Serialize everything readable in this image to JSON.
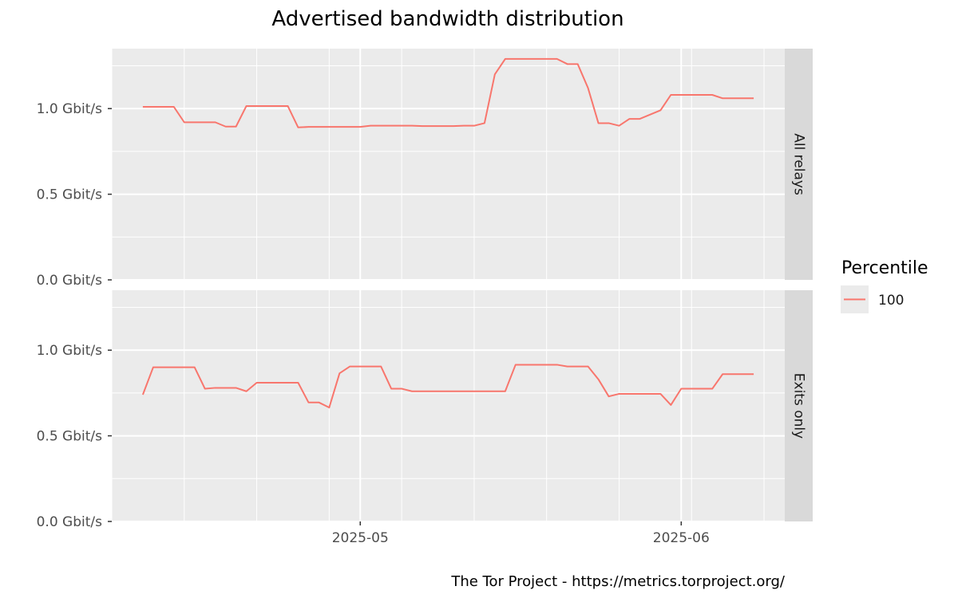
{
  "chart_data": {
    "type": "line",
    "title": "Advertised bandwidth distribution",
    "caption": "The Tor Project - https://metrics.torproject.org/",
    "ylim": [
      0,
      1.35
    ],
    "y_ticks": [
      {
        "value": 0.0,
        "label": "0.0 Gbit/s"
      },
      {
        "value": 0.5,
        "label": "0.5 Gbit/s"
      },
      {
        "value": 1.0,
        "label": "1.0 Gbit/s"
      }
    ],
    "xlim": [
      "2025-04-07",
      "2025-06-11"
    ],
    "x_ticks": [
      {
        "value": "2025-05-01",
        "label": "2025-05"
      },
      {
        "value": "2025-06-01",
        "label": "2025-06"
      }
    ],
    "legend": {
      "title": "Percentile",
      "entries": [
        "100"
      ],
      "position": "right"
    },
    "colors": {
      "line": "#f8766d",
      "panel": "#ebebeb",
      "strip": "#d9d9d9",
      "grid": "#ffffff"
    },
    "grid": true,
    "panels": [
      {
        "label": "All relays",
        "series": [
          {
            "name": "100",
            "x": [
              "2025-04-10",
              "2025-04-11",
              "2025-04-12",
              "2025-04-13",
              "2025-04-14",
              "2025-04-15",
              "2025-04-16",
              "2025-04-17",
              "2025-04-18",
              "2025-04-19",
              "2025-04-20",
              "2025-04-21",
              "2025-04-22",
              "2025-04-23",
              "2025-04-24",
              "2025-04-25",
              "2025-04-26",
              "2025-04-27",
              "2025-04-28",
              "2025-04-29",
              "2025-04-30",
              "2025-05-01",
              "2025-05-02",
              "2025-05-03",
              "2025-05-04",
              "2025-05-05",
              "2025-05-06",
              "2025-05-07",
              "2025-05-08",
              "2025-05-09",
              "2025-05-10",
              "2025-05-11",
              "2025-05-12",
              "2025-05-13",
              "2025-05-14",
              "2025-05-15",
              "2025-05-16",
              "2025-05-17",
              "2025-05-18",
              "2025-05-19",
              "2025-05-20",
              "2025-05-21",
              "2025-05-22",
              "2025-05-23",
              "2025-05-24",
              "2025-05-25",
              "2025-05-26",
              "2025-05-27",
              "2025-05-28",
              "2025-05-29",
              "2025-05-30",
              "2025-05-31",
              "2025-06-01",
              "2025-06-02",
              "2025-06-03",
              "2025-06-04",
              "2025-06-05",
              "2025-06-06",
              "2025-06-07",
              "2025-06-08"
            ],
            "values": [
              1.01,
              1.01,
              1.01,
              1.01,
              0.92,
              0.92,
              0.92,
              0.92,
              0.895,
              0.895,
              1.015,
              1.015,
              1.015,
              1.015,
              1.015,
              0.89,
              0.893,
              0.893,
              0.893,
              0.893,
              0.893,
              0.893,
              0.9,
              0.9,
              0.9,
              0.9,
              0.9,
              0.898,
              0.898,
              0.898,
              0.898,
              0.9,
              0.9,
              0.915,
              1.2,
              1.29,
              1.29,
              1.29,
              1.29,
              1.29,
              1.29,
              1.26,
              1.26,
              1.12,
              0.915,
              0.915,
              0.9,
              0.94,
              0.94,
              0.965,
              0.99,
              1.08,
              1.08,
              1.08,
              1.08,
              1.08,
              1.06,
              1.06,
              1.06,
              1.06
            ]
          }
        ]
      },
      {
        "label": "Exits only",
        "series": [
          {
            "name": "100",
            "x": [
              "2025-04-10",
              "2025-04-11",
              "2025-04-12",
              "2025-04-13",
              "2025-04-14",
              "2025-04-15",
              "2025-04-16",
              "2025-04-17",
              "2025-04-18",
              "2025-04-19",
              "2025-04-20",
              "2025-04-21",
              "2025-04-22",
              "2025-04-23",
              "2025-04-24",
              "2025-04-25",
              "2025-04-26",
              "2025-04-27",
              "2025-04-28",
              "2025-04-29",
              "2025-04-30",
              "2025-05-01",
              "2025-05-02",
              "2025-05-03",
              "2025-05-04",
              "2025-05-05",
              "2025-05-06",
              "2025-05-07",
              "2025-05-08",
              "2025-05-09",
              "2025-05-10",
              "2025-05-11",
              "2025-05-12",
              "2025-05-13",
              "2025-05-14",
              "2025-05-15",
              "2025-05-16",
              "2025-05-17",
              "2025-05-18",
              "2025-05-19",
              "2025-05-20",
              "2025-05-21",
              "2025-05-22",
              "2025-05-23",
              "2025-05-24",
              "2025-05-25",
              "2025-05-26",
              "2025-05-27",
              "2025-05-28",
              "2025-05-29",
              "2025-05-30",
              "2025-05-31",
              "2025-06-01",
              "2025-06-02",
              "2025-06-03",
              "2025-06-04",
              "2025-06-05",
              "2025-06-06",
              "2025-06-07",
              "2025-06-08"
            ],
            "values": [
              0.74,
              0.9,
              0.9,
              0.9,
              0.9,
              0.9,
              0.775,
              0.78,
              0.78,
              0.78,
              0.76,
              0.81,
              0.81,
              0.81,
              0.81,
              0.81,
              0.695,
              0.695,
              0.665,
              0.865,
              0.905,
              0.905,
              0.905,
              0.905,
              0.775,
              0.775,
              0.76,
              0.76,
              0.76,
              0.76,
              0.76,
              0.76,
              0.76,
              0.76,
              0.76,
              0.76,
              0.915,
              0.915,
              0.915,
              0.915,
              0.915,
              0.905,
              0.905,
              0.905,
              0.83,
              0.73,
              0.745,
              0.745,
              0.745,
              0.745,
              0.745,
              0.68,
              0.775,
              0.775,
              0.775,
              0.775,
              0.86,
              0.86,
              0.86,
              0.86
            ]
          }
        ]
      }
    ]
  }
}
